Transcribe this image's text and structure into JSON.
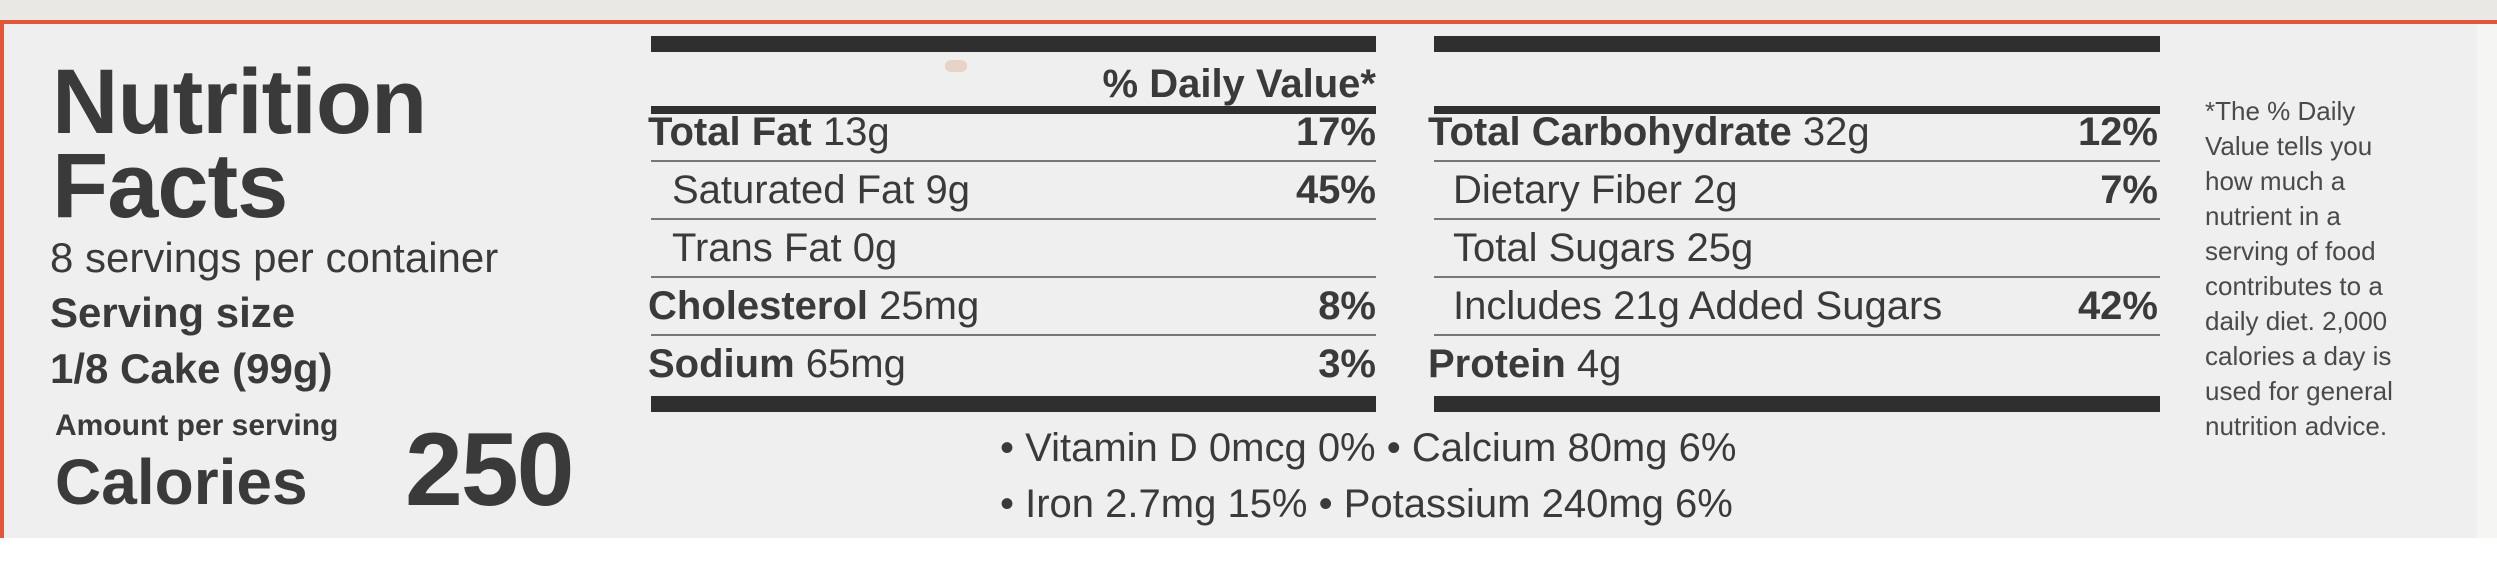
{
  "label": {
    "title_line1": "Nutrition",
    "title_line2": "Facts",
    "servings_per_container": "8 servings per container",
    "serving_size_label": "Serving size",
    "serving_size_value": "1/8 Cake (99g)",
    "amount_per_serving": "Amount per serving",
    "calories_label": "Calories",
    "calories_value": "250",
    "daily_value_header": "% Daily Value*"
  },
  "left_nutrients": [
    {
      "name": "Total Fat",
      "amount": "13g",
      "dv": "17%",
      "bold": true
    },
    {
      "name": "Saturated Fat",
      "amount": "9g",
      "dv": "45%",
      "bold": false
    },
    {
      "name": "Trans Fat",
      "amount": "0g",
      "dv": "",
      "bold": false,
      "italic_trans": true
    },
    {
      "name": "Cholesterol",
      "amount": "25mg",
      "dv": "8%",
      "bold": true
    },
    {
      "name": "Sodium",
      "amount": "65mg",
      "dv": "3%",
      "bold": true
    }
  ],
  "right_nutrients": [
    {
      "name": "Total Carbohydrate",
      "amount": "32g",
      "dv": "12%",
      "bold": true
    },
    {
      "name": "Dietary Fiber",
      "amount": "2g",
      "dv": "7%",
      "bold": false
    },
    {
      "name": "Total Sugars",
      "amount": "25g",
      "dv": "",
      "bold": false
    },
    {
      "name": "Includes 21g Added Sugars",
      "amount": "",
      "dv": "42%",
      "bold": false
    },
    {
      "name": "Protein",
      "amount": "4g",
      "dv": "",
      "bold": true
    }
  ],
  "vitamins": {
    "line1": "• Vitamin D 0mcg 0% • Calcium 80mg 6%",
    "line2": "• Iron 2.7mg 15% • Potassium 240mg 6%"
  },
  "footnote": {
    "lines": [
      "*The % Daily",
      "Value tells you",
      "how much a",
      "nutrient in a",
      "serving of food",
      "contributes to a",
      "daily diet. 2,000",
      "calories a day is",
      "used for general",
      "nutrition advice."
    ]
  },
  "colors": {
    "background": "#efefef",
    "text": "#3a3a3a",
    "rule": "#2f2f2f",
    "accent_red": "#e2573a"
  }
}
